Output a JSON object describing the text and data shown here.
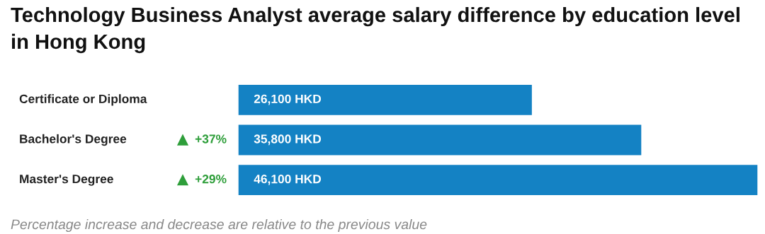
{
  "chart_data": {
    "type": "bar",
    "orientation": "horizontal",
    "title": "Technology Business Analyst average salary difference by education level in Hong Kong",
    "categories": [
      "Certificate or Diploma",
      "Bachelor's Degree",
      "Master's Degree"
    ],
    "values": [
      26100,
      35800,
      46100
    ],
    "value_labels": [
      "26,100 HKD",
      "35,800 HKD",
      "46,100 HKD"
    ],
    "color": "#1482c4",
    "annotations": [
      "+37%",
      "+29%",
      "Percentage increase and decrease are relative to the previous value"
    ],
    "legend": false
  }
}
